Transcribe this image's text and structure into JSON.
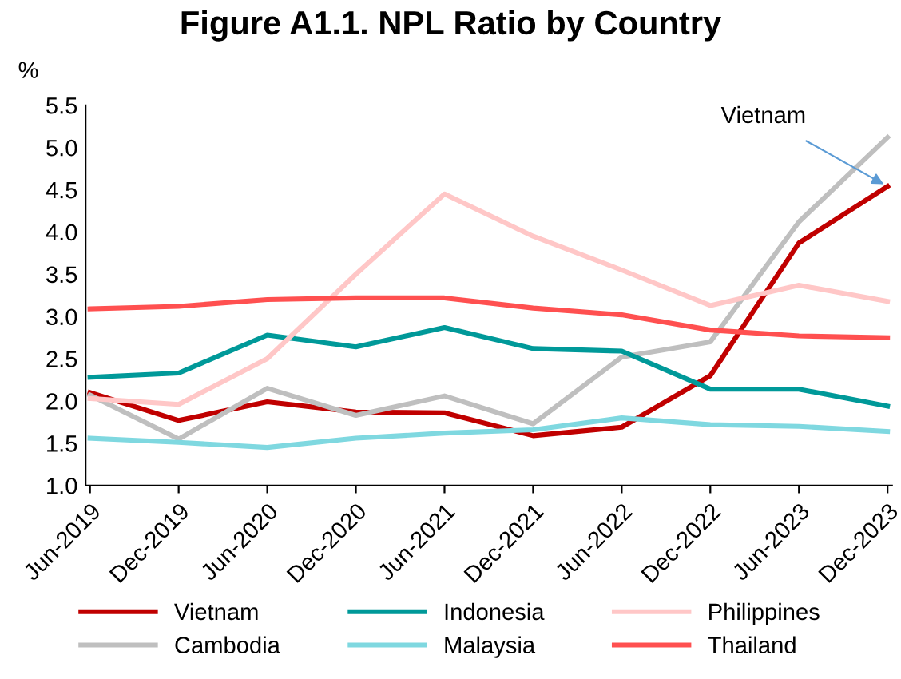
{
  "chart_data": {
    "type": "line",
    "title": "Figure A1.1. NPL Ratio by Country",
    "ylabel": "%",
    "categories": [
      "Jun-2019",
      "Dec-2019",
      "Jun-2020",
      "Dec-2020",
      "Jun-2021",
      "Dec-2021",
      "Jun-2022",
      "Dec-2022",
      "Jun-2023",
      "Dec-2023"
    ],
    "series": [
      {
        "name": "Vietnam",
        "color": "#c00000",
        "values": [
          2.1,
          1.77,
          1.99,
          1.87,
          1.86,
          1.59,
          1.69,
          2.3,
          3.87,
          4.54
        ]
      },
      {
        "name": "Cambodia",
        "color": "#bfbfbf",
        "values": [
          2.07,
          1.55,
          2.15,
          1.83,
          2.06,
          1.73,
          2.52,
          2.7,
          4.12,
          5.12
        ]
      },
      {
        "name": "Indonesia",
        "color": "#009999",
        "values": [
          2.28,
          2.33,
          2.78,
          2.64,
          2.87,
          2.62,
          2.59,
          2.14,
          2.14,
          1.94
        ]
      },
      {
        "name": "Malaysia",
        "color": "#7fd8e0",
        "values": [
          1.56,
          1.51,
          1.45,
          1.56,
          1.62,
          1.66,
          1.8,
          1.72,
          1.7,
          1.64
        ]
      },
      {
        "name": "Philippines",
        "color": "#ffc7c7",
        "values": [
          2.03,
          1.96,
          2.5,
          3.5,
          4.45,
          3.95,
          3.55,
          3.13,
          3.37,
          3.18
        ]
      },
      {
        "name": "Thailand",
        "color": "#ff5050",
        "values": [
          3.09,
          3.12,
          3.2,
          3.22,
          3.22,
          3.1,
          3.02,
          2.84,
          2.77,
          2.75
        ]
      }
    ],
    "annotations": [
      {
        "text": "Vietnam",
        "x": "Dec-2023",
        "y": 4.54
      }
    ],
    "ylim": [
      1.0,
      5.5
    ],
    "yticks": [
      {
        "value": 1.0,
        "label": "1.0"
      },
      {
        "value": 1.5,
        "label": "1.5"
      },
      {
        "value": 2.0,
        "label": "2.0"
      },
      {
        "value": 2.5,
        "label": "2.5"
      },
      {
        "value": 3.0,
        "label": "3.0"
      },
      {
        "value": 3.5,
        "label": "3.5"
      },
      {
        "value": 4.0,
        "label": "4.0"
      },
      {
        "value": 4.5,
        "label": "4.5"
      },
      {
        "value": 5.0,
        "label": "5.0"
      },
      {
        "value": 5.5,
        "label": "5.5"
      }
    ],
    "grid": false,
    "legend": "bottom",
    "marker": "none",
    "line_style": "solid"
  }
}
